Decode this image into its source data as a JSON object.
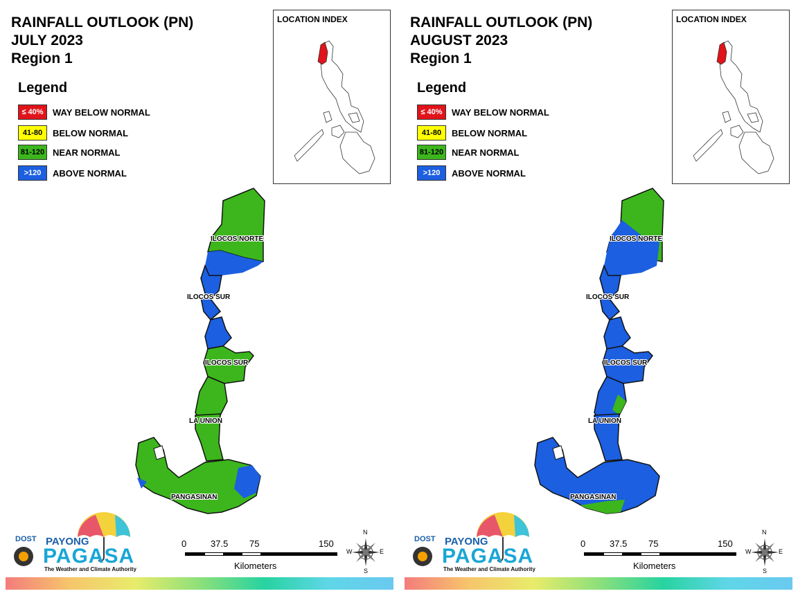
{
  "panels": [
    {
      "title_line1": "RAINFALL OUTLOOK (PN)",
      "title_line2": "JULY 2023",
      "title_line3": "Region 1",
      "legend_title": "Legend",
      "legend": [
        {
          "code": "≤ 40%",
          "label": "WAY BELOW NORMAL",
          "color": "#e0141a",
          "text_color": "#ffffff"
        },
        {
          "code": "41-80",
          "label": "BELOW NORMAL",
          "color": "#ffff00",
          "text_color": "#000000"
        },
        {
          "code": "81-120",
          "label": "NEAR NORMAL",
          "color": "#3cb61c",
          "text_color": "#000000"
        },
        {
          "code": ">120",
          "label": "ABOVE NORMAL",
          "color": "#1c5fe0",
          "text_color": "#ffffff"
        }
      ],
      "location_index_title": "LOCATION INDEX",
      "provinces": {
        "p1": "ILOCOS NORTE",
        "p2": "ILOCOS SUR",
        "p3": "ILOCOS SUR",
        "p4": "LA UNION",
        "p5": "PANGASINAN"
      },
      "scale": {
        "t0": "0",
        "t1": "37.5",
        "t2": "75",
        "t3": "150",
        "unit": "Kilometers"
      },
      "compass": {
        "n": "N",
        "s": "S",
        "e": "E",
        "w": "W"
      },
      "logo": {
        "dost": "DOST",
        "payong": "PAYONG",
        "pagasa": "PAGASA",
        "tagline": "The Weather and Climate Authority"
      }
    },
    {
      "title_line1": "RAINFALL OUTLOOK (PN)",
      "title_line2": "AUGUST 2023",
      "title_line3": "Region 1",
      "legend_title": "Legend",
      "legend": [
        {
          "code": "≤ 40%",
          "label": "WAY BELOW NORMAL",
          "color": "#e0141a",
          "text_color": "#ffffff"
        },
        {
          "code": "41-80",
          "label": "BELOW NORMAL",
          "color": "#ffff00",
          "text_color": "#000000"
        },
        {
          "code": "81-120",
          "label": "NEAR NORMAL",
          "color": "#3cb61c",
          "text_color": "#000000"
        },
        {
          "code": ">120",
          "label": "ABOVE NORMAL",
          "color": "#1c5fe0",
          "text_color": "#ffffff"
        }
      ],
      "location_index_title": "LOCATION INDEX",
      "provinces": {
        "p1": "ILOCOS NORTE",
        "p2": "ILOCOS SUR",
        "p3": "ILOCOS SUR",
        "p4": "LA UNION",
        "p5": "PANGASINAN"
      },
      "scale": {
        "t0": "0",
        "t1": "37.5",
        "t2": "75",
        "t3": "150",
        "unit": "Kilometers"
      },
      "compass": {
        "n": "N",
        "s": "S",
        "e": "E",
        "w": "W"
      },
      "logo": {
        "dost": "DOST",
        "payong": "PAYONG",
        "pagasa": "PAGASA",
        "tagline": "The Weather and Climate Authority"
      }
    }
  ],
  "map_colors": {
    "green": "#3cb61c",
    "blue": "#1c5fe0",
    "highlight": "#e0141a"
  }
}
